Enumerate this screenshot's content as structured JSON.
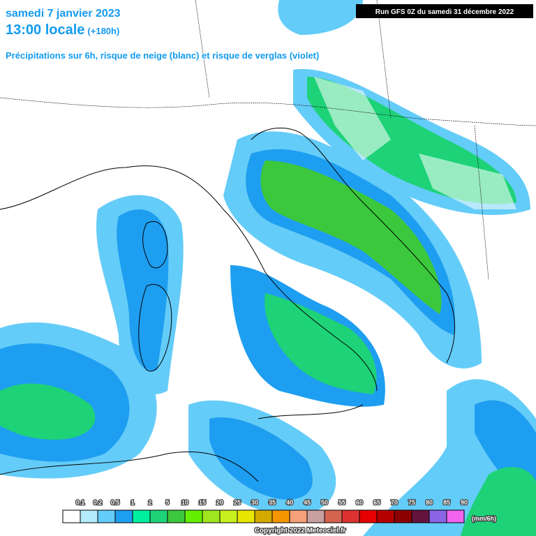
{
  "header": {
    "date": "samedi 7 janvier 2023",
    "time": "13:00 locale",
    "lead": "(+180h)",
    "subtitle": "Précipitations sur 6h, risque de neige (blanc) et risque de verglas (violet)",
    "run": "Run GFS 0Z du samedi 31 décembre 2022"
  },
  "legend": {
    "labels": [
      "0.1",
      "0.2",
      "0.5",
      "1",
      "2",
      "5",
      "10",
      "15",
      "20",
      "25",
      "30",
      "35",
      "40",
      "45",
      "50",
      "55",
      "60",
      "65",
      "70",
      "75",
      "80",
      "85",
      "90"
    ],
    "colors": [
      "#ffffff",
      "#b4ecfc",
      "#64ccf8",
      "#1e9ef0",
      "#00f0a0",
      "#1ed278",
      "#3cc83c",
      "#64f000",
      "#a0e61e",
      "#c8f01e",
      "#e6e600",
      "#d2aa00",
      "#f59600",
      "#f5a078",
      "#c8a0a0",
      "#d26450",
      "#dc3232",
      "#e60000",
      "#b40000",
      "#8c0000",
      "#64143c",
      "#8c64e6",
      "#f064f0"
    ],
    "unit": "(mm/6h)"
  },
  "footer": {
    "copyright": "Copyright 2022 Meteociel.fr"
  }
}
